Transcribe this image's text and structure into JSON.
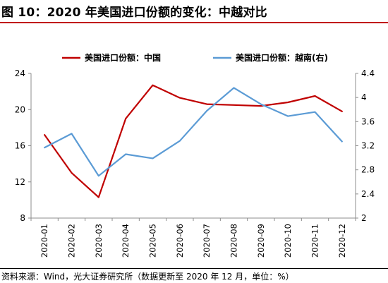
{
  "title": "图 10：2020 年美国进口份额的变化：中越对比",
  "source": "资料来源：Wind，光大证券研究所（数据更新至 2020 年 12 月，单位：%）",
  "colors": {
    "china": "#c00000",
    "vietnam": "#5b9bd5",
    "title_rule": "#c00000"
  },
  "chart_data": {
    "type": "line",
    "categories": [
      "2020-01",
      "2020-02",
      "2020-03",
      "2020-04",
      "2020-05",
      "2020-06",
      "2020-07",
      "2020-08",
      "2020-09",
      "2020-10",
      "2020-11",
      "2020-12"
    ],
    "series": [
      {
        "name": "美国进口份额：中国",
        "axis": "left",
        "values": [
          17.2,
          13.0,
          10.3,
          19.0,
          22.7,
          21.3,
          20.6,
          20.5,
          20.4,
          20.8,
          21.5,
          19.8
        ]
      },
      {
        "name": "美国进口份额：越南(右)",
        "axis": "right",
        "values": [
          3.17,
          3.4,
          2.7,
          3.06,
          2.99,
          3.28,
          3.78,
          4.16,
          3.89,
          3.69,
          3.76,
          3.27
        ]
      }
    ],
    "y_left": {
      "min": 8,
      "max": 24,
      "ticks": [
        "8",
        "12",
        "16",
        "20",
        "24"
      ]
    },
    "y_right": {
      "min": 2,
      "max": 4.4,
      "ticks": [
        "2",
        "2.4",
        "2.8",
        "3.2",
        "3.6",
        "4",
        "4.4"
      ]
    },
    "legend_position": "top",
    "grid": false
  }
}
